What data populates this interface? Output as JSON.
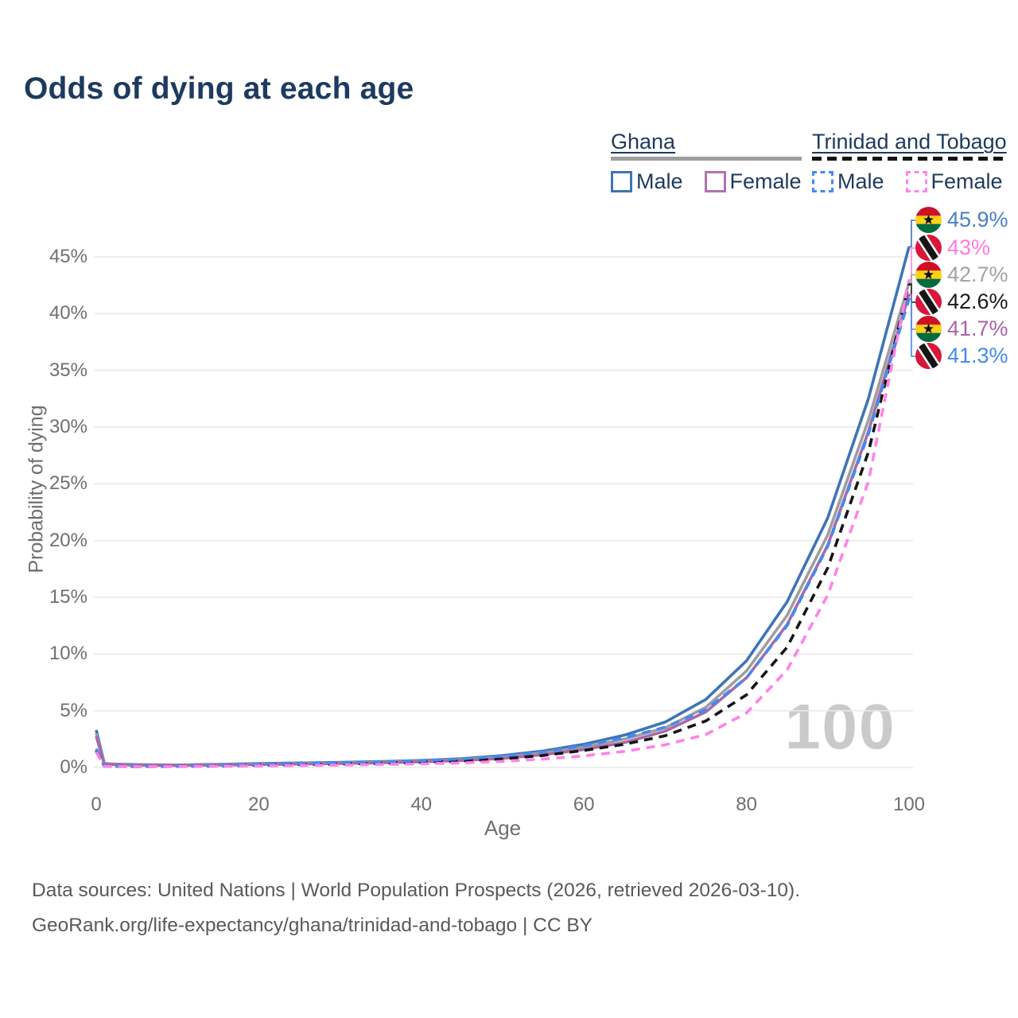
{
  "title": "Odds of dying at each age",
  "legend": {
    "groups": [
      {
        "label": "Ghana",
        "line_style": "solid",
        "line_color": "#9e9e9e",
        "items": [
          {
            "label": "Male",
            "color": "#3e74b5",
            "dashed": false
          },
          {
            "label": "Female",
            "color": "#b172af",
            "dashed": false
          }
        ]
      },
      {
        "label": "Trinidad and Tobago",
        "line_style": "dashed",
        "line_color": "#151515",
        "items": [
          {
            "label": "Male",
            "color": "#4589f2",
            "dashed": true
          },
          {
            "label": "Female",
            "color": "#ff85e9",
            "dashed": true
          }
        ]
      }
    ]
  },
  "chart_data": {
    "type": "line",
    "title": "Odds of dying at each age",
    "xlabel": "Age",
    "ylabel": "Probability of dying",
    "xlim": [
      0,
      100
    ],
    "ylim": [
      0,
      47.5
    ],
    "x_ticks": [
      0,
      20,
      40,
      60,
      80,
      100
    ],
    "y_ticks": [
      0,
      5,
      10,
      15,
      20,
      25,
      30,
      35,
      40,
      45
    ],
    "y_tick_suffix": "%",
    "grid": "horizontal",
    "legend_position": "top-right",
    "x": [
      0,
      1,
      2,
      5,
      10,
      15,
      20,
      25,
      30,
      35,
      40,
      45,
      50,
      55,
      60,
      65,
      70,
      75,
      80,
      85,
      90,
      95,
      100
    ],
    "series": [
      {
        "name": "Ghana Male",
        "country": "Ghana",
        "sex": "male",
        "color": "#3e74b5",
        "dashed": false,
        "end_label": "45.9%",
        "end_label_color": "#4a7ec7",
        "end_value": 45.9,
        "values": [
          3.3,
          0.35,
          0.3,
          0.25,
          0.22,
          0.28,
          0.35,
          0.4,
          0.45,
          0.52,
          0.62,
          0.78,
          1.05,
          1.45,
          2.05,
          2.85,
          4.0,
          6.0,
          9.4,
          14.6,
          22.0,
          32.5,
          45.9
        ]
      },
      {
        "name": "Ghana Both sexes",
        "country": "Ghana",
        "sex": "both",
        "color": "#9e9e9e",
        "dashed": false,
        "end_label": "42.7%",
        "end_label_color": "#a3a3a3",
        "end_value": 42.7,
        "values": [
          3.0,
          0.32,
          0.27,
          0.22,
          0.2,
          0.25,
          0.3,
          0.35,
          0.4,
          0.46,
          0.56,
          0.7,
          0.92,
          1.28,
          1.8,
          2.5,
          3.5,
          5.3,
          8.5,
          13.4,
          20.5,
          30.6,
          42.7
        ]
      },
      {
        "name": "Ghana Female",
        "country": "Ghana",
        "sex": "female",
        "color": "#a868a8",
        "dashed": false,
        "end_label": "41.7%",
        "end_label_color": "#a963a9",
        "end_value": 41.7,
        "values": [
          2.75,
          0.3,
          0.25,
          0.2,
          0.18,
          0.22,
          0.26,
          0.3,
          0.35,
          0.41,
          0.5,
          0.62,
          0.8,
          1.12,
          1.58,
          2.2,
          3.2,
          4.9,
          7.9,
          12.6,
          19.6,
          29.6,
          41.7
        ]
      },
      {
        "name": "Trinidad and Tobago Both sexes",
        "country": "Trinidad and Tobago",
        "sex": "both",
        "color": "#151515",
        "dashed": true,
        "end_label": "42.6%",
        "end_label_color": "#1a1a1a",
        "end_value": 42.6,
        "values": [
          1.5,
          0.1,
          0.09,
          0.08,
          0.09,
          0.14,
          0.2,
          0.26,
          0.31,
          0.37,
          0.46,
          0.57,
          0.76,
          1.06,
          1.5,
          2.05,
          2.8,
          4.1,
          6.4,
          10.6,
          17.6,
          27.8,
          42.6
        ]
      },
      {
        "name": "Trinidad and Tobago Male",
        "country": "Trinidad and Tobago",
        "sex": "male",
        "color": "#4589f2",
        "dashed": true,
        "end_label": "41.3%",
        "end_label_color": "#4589f2",
        "end_value": 41.3,
        "values": [
          1.65,
          0.12,
          0.1,
          0.09,
          0.1,
          0.18,
          0.28,
          0.35,
          0.42,
          0.5,
          0.6,
          0.76,
          1.0,
          1.38,
          1.92,
          2.62,
          3.55,
          5.1,
          7.9,
          12.5,
          19.5,
          29.4,
          41.3
        ]
      },
      {
        "name": "Trinidad and Tobago Female",
        "country": "Trinidad and Tobago",
        "sex": "female",
        "color": "#ff82e9",
        "dashed": true,
        "end_label": "43%",
        "end_label_color": "#ff7bdf",
        "end_value": 43.0,
        "values": [
          1.35,
          0.09,
          0.08,
          0.07,
          0.08,
          0.1,
          0.13,
          0.17,
          0.21,
          0.26,
          0.32,
          0.41,
          0.54,
          0.74,
          1.02,
          1.42,
          2.0,
          2.9,
          4.8,
          8.6,
          15.2,
          25.2,
          43.0
        ]
      }
    ]
  },
  "end_labels": [
    {
      "value": "45.9%",
      "flag": "ghana",
      "color": "#4a7ec7",
      "series": "Ghana Male"
    },
    {
      "value": "43%",
      "flag": "trinidad-and-tobago",
      "color": "#ff7bdf",
      "series": "Trinidad and Tobago Female"
    },
    {
      "value": "42.7%",
      "flag": "ghana",
      "color": "#a3a3a3",
      "series": "Ghana Both sexes"
    },
    {
      "value": "42.6%",
      "flag": "trinidad-and-tobago",
      "color": "#1a1a1a",
      "series": "Trinidad and Tobago Both sexes"
    },
    {
      "value": "41.7%",
      "flag": "ghana",
      "color": "#a963a9",
      "series": "Ghana Female"
    },
    {
      "value": "41.3%",
      "flag": "trinidad-and-tobago",
      "color": "#4589f2",
      "series": "Trinidad and Tobago Male"
    }
  ],
  "flag_colors": {
    "ghana": {
      "red": "#ce1126",
      "gold": "#fcd116",
      "green": "#006b3f",
      "star": "#111111"
    },
    "trinidad_and_tobago": {
      "red": "#d8173a",
      "white": "#ffffff",
      "black": "#151515"
    }
  },
  "watermark": "100",
  "footer": {
    "line1": "Data sources: United Nations | World Population Prospects (2026, retrieved 2026-03-10).",
    "line2": "GeoRank.org/life-expectancy/ghana/trinidad-and-tobago | CC BY"
  }
}
